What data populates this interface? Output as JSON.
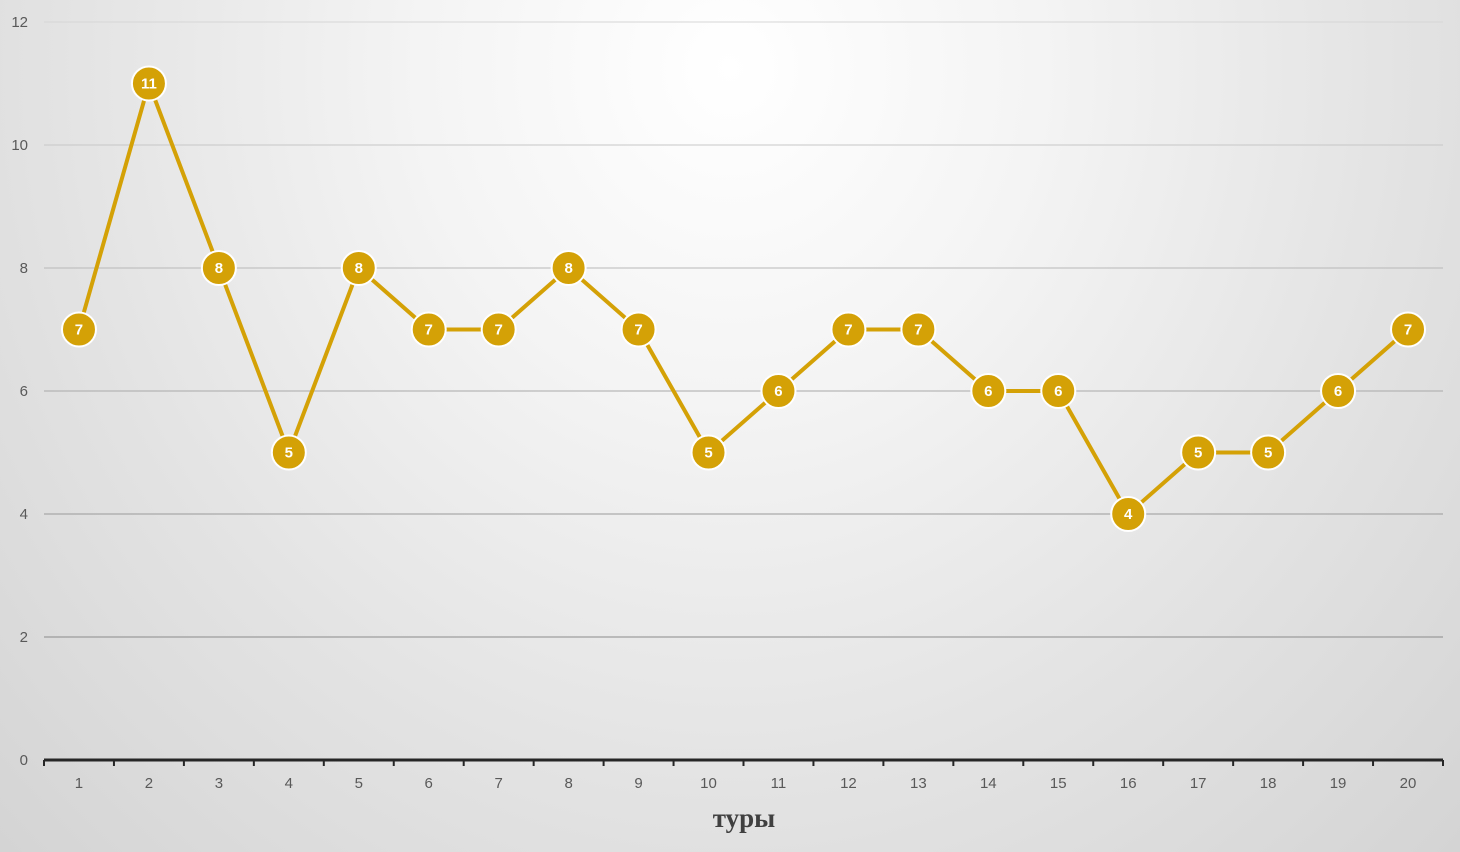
{
  "chart_data": {
    "type": "line",
    "x": [
      "1",
      "2",
      "3",
      "4",
      "5",
      "6",
      "7",
      "8",
      "9",
      "10",
      "11",
      "12",
      "13",
      "14",
      "15",
      "16",
      "17",
      "18",
      "19",
      "20"
    ],
    "series": [
      {
        "values": [
          7,
          11,
          8,
          5,
          8,
          7,
          7,
          8,
          7,
          5,
          6,
          7,
          7,
          6,
          6,
          4,
          5,
          5,
          6,
          7
        ],
        "color": "#d4a106"
      }
    ],
    "yticks": [
      "0",
      "2",
      "4",
      "6",
      "8",
      "10",
      "12"
    ],
    "ylim": [
      0,
      12
    ],
    "xlabel": "туры",
    "ylabel": "",
    "title": "",
    "grid": true,
    "legend": "none",
    "data_labels": true,
    "marker": "circle"
  }
}
